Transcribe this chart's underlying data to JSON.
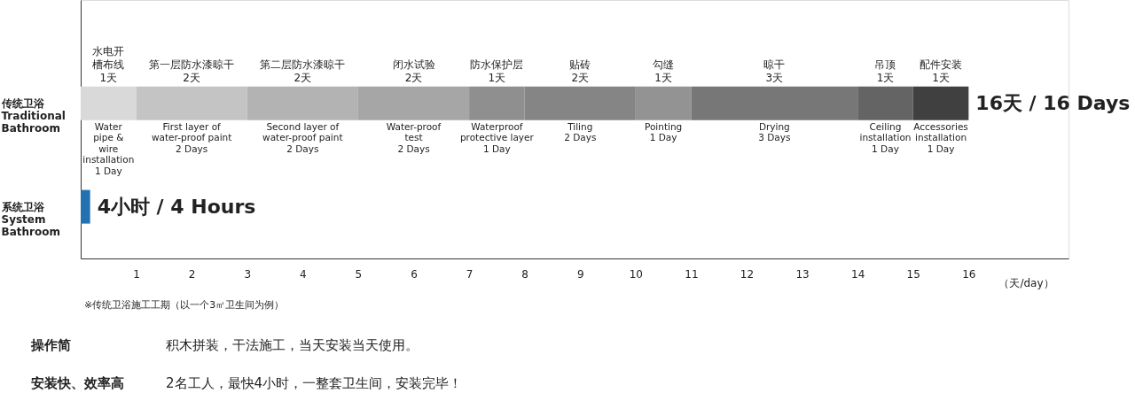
{
  "chart_data": {
    "type": "bar",
    "orientation": "horizontal",
    "stacked": true,
    "categories": [
      "传统卫浴\nTraditional\nBathroom",
      "系统卫浴\nSystem\nBathroom"
    ],
    "series": [
      {
        "name": "水电开槽布线",
        "color": "#d9d9d9",
        "values": [
          1,
          null
        ],
        "value_labels": [
          "1天",
          null
        ]
      },
      {
        "name": "第一层防水漆晾干",
        "color": "#c4c4c4",
        "values": [
          2,
          null
        ],
        "value_labels": [
          "2天",
          null
        ]
      },
      {
        "name": "第二层防水漆晾干",
        "color": "#b3b3b3",
        "values": [
          2,
          null
        ],
        "value_labels": [
          "2天",
          null
        ]
      },
      {
        "name": "闭水试验",
        "color": "#a6a6a6",
        "values": [
          2,
          null
        ],
        "value_labels": [
          "2天",
          null
        ]
      },
      {
        "name": "防水保护层",
        "color": "#8f8f8f",
        "values": [
          1,
          null
        ],
        "value_labels": [
          "1天",
          null
        ]
      },
      {
        "name": "贴砖",
        "color": "#858585",
        "values": [
          2,
          null
        ],
        "value_labels": [
          "2天",
          null
        ]
      },
      {
        "name": "勾缝",
        "color": "#939393",
        "values": [
          1,
          null
        ],
        "value_labels": [
          "1天",
          null
        ]
      },
      {
        "name": "晾干",
        "color": "#777777",
        "values": [
          3,
          null
        ],
        "value_labels": [
          "3天",
          null
        ]
      },
      {
        "name": "吊顶",
        "color": "#646464",
        "values": [
          1,
          null
        ],
        "value_labels": [
          "1天",
          null
        ]
      },
      {
        "name": "配件安装",
        "color": "#404040",
        "values": [
          1,
          null
        ],
        "value_labels": [
          "1天",
          null
        ]
      },
      {
        "color": "#2271b1",
        "values": [
          null,
          0.17
        ]
      }
    ],
    "totals": [
      "16天 / 16 Days",
      "4小时 / 4 Hours"
    ],
    "xlim": [
      0,
      17.8
    ],
    "xticks": [
      1,
      2,
      3,
      4,
      5,
      6,
      7,
      8,
      9,
      10,
      11,
      12,
      13,
      14,
      15,
      16
    ],
    "xlabel": "（天/day）",
    "annotations": [
      {
        "text": "Water\npipe &\nwire\ninstallation\n1 Day",
        "x": 0.5,
        "y": "传统卫浴\nTraditional\nBathroom"
      },
      {
        "text": "First layer of\nwater-proof paint\n2 Days",
        "x": 2,
        "y": "传统卫浴\nTraditional\nBathroom"
      },
      {
        "text": "Second layer of\nwater-proof paint\n2 Days",
        "x": 4,
        "y": "传统卫浴\nTraditional\nBathroom"
      },
      {
        "text": "Water-proof\ntest\n2 Days",
        "x": 6,
        "y": "传统卫浴\nTraditional\nBathroom"
      },
      {
        "text": "Waterproof\nprotective layer\n1 Day",
        "x": 7.5,
        "y": "传统卫浴\nTraditional\nBathroom"
      },
      {
        "text": "Tiling\n2 Days",
        "x": 9,
        "y": "传统卫浴\nTraditional\nBathroom"
      },
      {
        "text": "Pointing\n1 Day",
        "x": 10.5,
        "y": "传统卫浴\nTraditional\nBathroom"
      },
      {
        "text": "Drying\n3 Days",
        "x": 12.5,
        "y": "传统卫浴\nTraditional\nBathroom"
      },
      {
        "text": "Ceiling\ninstallation\n1 Day",
        "x": 14.5,
        "y": "传统卫浴\nTraditional\nBathroom"
      },
      {
        "text": "Accessories\ninstallation\n1 Day",
        "x": 15.5,
        "y": "传统卫浴\nTraditional\nBathroom"
      },
      "※传统卫浴施工工期（以一个3㎡卫生间为例）",
      "操作简",
      "积木拼装，干法施工，当天安装当天使用。",
      "安装快、效率高",
      "2名工人，最快4小时，一整套卫生间，安装完毕！"
    ]
  }
}
